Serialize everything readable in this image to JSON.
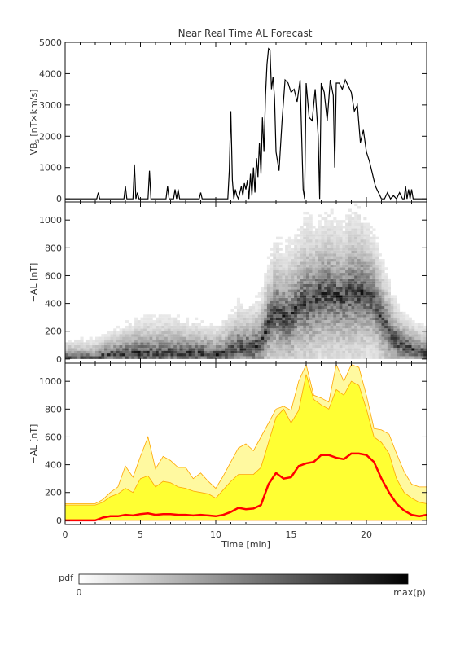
{
  "title": "Near Real Time AL Forecast",
  "colorbar": {
    "label": "pdf",
    "min_label": "0",
    "max_label": "max(p)"
  },
  "colors": {
    "line": "#000000",
    "pdf_dark": "#000000",
    "band_outer": "#fff9a0",
    "band_inner": "#ffff33",
    "band_edge": "#ffa500",
    "median": "#ff0000"
  },
  "chart_data": [
    {
      "type": "line",
      "panel": "top",
      "title": "Near Real Time AL Forecast",
      "ylabel": "VBs [nT×km/s]",
      "ylabel_main": "VB",
      "ylabel_sub": "s",
      "ylabel_rest": " [nT×km/s]",
      "xlim": [
        0,
        24
      ],
      "ylim": [
        -100,
        5000
      ],
      "yticks": [
        0,
        1000,
        2000,
        3000,
        4000,
        5000
      ],
      "series": [
        {
          "x": [
            0,
            2.1,
            2.2,
            2.3,
            3.9,
            4.0,
            4.1,
            4.5,
            4.6,
            4.7,
            4.8,
            4.9,
            5.5,
            5.6,
            5.7,
            5.8,
            6.7,
            6.8,
            6.9,
            7.2,
            7.3,
            7.4,
            7.5,
            7.6,
            8.9,
            9.0,
            9.1,
            10.8,
            10.9,
            11.0,
            11.1,
            11.2,
            11.3,
            11.4,
            11.5,
            11.6,
            11.7,
            11.8,
            11.9,
            12.0,
            12.1,
            12.2,
            12.3,
            12.4,
            12.5,
            12.6,
            12.7,
            12.8,
            12.9,
            13.0,
            13.1,
            13.2,
            13.3,
            13.4,
            13.5,
            13.6,
            13.7,
            13.8,
            13.9,
            14.0,
            14.2,
            14.4,
            14.6,
            14.8,
            15.0,
            15.2,
            15.4,
            15.6,
            15.8,
            15.9,
            16.0,
            16.2,
            16.4,
            16.6,
            16.8,
            16.9,
            17.0,
            17.2,
            17.4,
            17.6,
            17.8,
            17.9,
            18.0,
            18.2,
            18.4,
            18.6,
            18.8,
            19.0,
            19.2,
            19.4,
            19.6,
            19.8,
            20.0,
            20.2,
            20.4,
            20.6,
            20.8,
            21.0,
            21.2,
            21.4,
            21.6,
            21.8,
            22.0,
            22.2,
            22.4,
            22.5,
            22.6,
            22.7,
            22.8,
            22.9,
            23.0,
            23.1,
            24
          ],
          "y": [
            0,
            0,
            200,
            0,
            0,
            400,
            0,
            0,
            1100,
            0,
            200,
            0,
            0,
            900,
            0,
            0,
            0,
            400,
            0,
            0,
            300,
            0,
            300,
            0,
            0,
            200,
            0,
            0,
            900,
            2800,
            600,
            0,
            300,
            100,
            0,
            200,
            400,
            100,
            500,
            300,
            600,
            0,
            800,
            100,
            1000,
            200,
            1300,
            700,
            1800,
            800,
            2600,
            1500,
            3300,
            4300,
            4800,
            4750,
            3500,
            3900,
            3200,
            1500,
            900,
            2500,
            3800,
            3700,
            3400,
            3500,
            3100,
            3800,
            300,
            0,
            3700,
            2600,
            2500,
            3500,
            2000,
            0,
            3700,
            3400,
            2500,
            3800,
            3300,
            1000,
            3700,
            3700,
            3500,
            3800,
            3600,
            3400,
            2800,
            3000,
            1800,
            2200,
            1500,
            1200,
            800,
            400,
            200,
            0,
            0,
            200,
            0,
            100,
            0,
            200,
            0,
            0,
            400,
            0,
            300,
            0,
            300,
            0,
            0
          ]
        }
      ]
    },
    {
      "type": "heatmap",
      "panel": "middle",
      "ylabel": "−AL [nT]",
      "xlim": [
        0,
        24
      ],
      "ylim": [
        -30,
        1130
      ],
      "yticks": [
        0,
        200,
        400,
        600,
        800,
        1000
      ],
      "description_colors": "grayscale pdf, 0 (white) to max(p) (black)",
      "median_x": [
        0,
        2,
        2.5,
        3,
        4,
        5,
        6,
        7,
        8,
        9,
        10,
        10.5,
        11,
        11.5,
        12,
        12.5,
        13,
        13.5,
        14,
        14.5,
        15,
        15.5,
        16,
        16.5,
        17,
        17.5,
        18,
        18.5,
        19,
        19.5,
        20,
        20.5,
        21,
        21.5,
        22,
        23,
        24
      ],
      "median_y": [
        0,
        0,
        20,
        30,
        40,
        45,
        40,
        45,
        40,
        40,
        30,
        40,
        60,
        90,
        80,
        85,
        110,
        260,
        340,
        300,
        310,
        390,
        410,
        420,
        470,
        470,
        450,
        440,
        480,
        480,
        470,
        420,
        300,
        200,
        120,
        70,
        40
      ],
      "spread_y": [
        120,
        120,
        140,
        160,
        200,
        280,
        260,
        280,
        250,
        230,
        200,
        240,
        280,
        330,
        330,
        340,
        380,
        500,
        600,
        600,
        600,
        600,
        720,
        650,
        650,
        680,
        640,
        620,
        700,
        700,
        620,
        550,
        500,
        420,
        300,
        220,
        180
      ]
    },
    {
      "type": "area",
      "panel": "bottom",
      "xlabel": "Time [min]",
      "ylabel": "−AL [nT]",
      "xlim": [
        0,
        24
      ],
      "ylim": [
        -30,
        1130
      ],
      "xticks": [
        0,
        5,
        10,
        15,
        20
      ],
      "yticks": [
        0,
        200,
        400,
        600,
        800,
        1000
      ],
      "x": [
        0,
        2,
        2.5,
        3,
        3.5,
        4,
        4.5,
        5,
        5.5,
        6,
        6.5,
        7,
        7.5,
        8,
        8.5,
        9,
        9.5,
        10,
        10.5,
        11,
        11.5,
        12,
        12.5,
        13,
        13.5,
        14,
        14.5,
        15,
        15.5,
        16,
        16.5,
        17,
        17.5,
        18,
        18.5,
        19,
        19.5,
        20,
        20.5,
        21,
        21.5,
        22,
        22.5,
        23,
        23.5,
        24
      ],
      "median": [
        0,
        0,
        20,
        30,
        30,
        40,
        35,
        45,
        50,
        40,
        45,
        45,
        40,
        40,
        35,
        40,
        35,
        30,
        40,
        60,
        90,
        80,
        85,
        110,
        260,
        340,
        300,
        310,
        390,
        410,
        420,
        470,
        470,
        450,
        440,
        480,
        480,
        470,
        420,
        300,
        200,
        120,
        70,
        40,
        30,
        40
      ],
      "inner_upper": [
        110,
        110,
        130,
        170,
        190,
        230,
        200,
        300,
        320,
        240,
        280,
        270,
        240,
        230,
        210,
        200,
        190,
        160,
        220,
        280,
        330,
        330,
        330,
        380,
        560,
        740,
        800,
        700,
        790,
        1050,
        870,
        830,
        800,
        940,
        900,
        1000,
        970,
        800,
        600,
        560,
        480,
        300,
        200,
        160,
        130,
        120
      ],
      "outer_upper": [
        120,
        120,
        150,
        200,
        240,
        390,
        310,
        460,
        600,
        370,
        460,
        430,
        380,
        380,
        300,
        340,
        280,
        230,
        320,
        420,
        520,
        550,
        500,
        600,
        700,
        800,
        820,
        790,
        1000,
        1120,
        900,
        880,
        850,
        1120,
        1000,
        1120,
        1100,
        900,
        660,
        650,
        620,
        480,
        350,
        260,
        240,
        240
      ]
    }
  ]
}
